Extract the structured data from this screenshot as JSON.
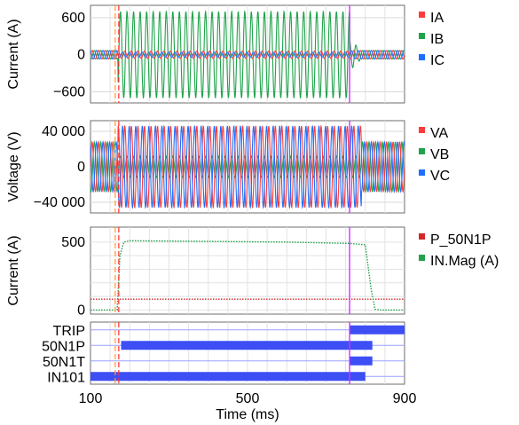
{
  "chart_data": [
    {
      "type": "line",
      "ylabel": "Current (A)",
      "yticks": [
        600,
        0,
        -600
      ],
      "ytick_labels": [
        "600",
        "0",
        "−600"
      ],
      "ylim": [
        -780,
        800
      ],
      "xlim": [
        100,
        900
      ],
      "grid": true,
      "legend_placement": "right",
      "series": [
        {
          "name": "IA",
          "color": "#ff3b3b"
        },
        {
          "name": "IB",
          "color": "#1fa34a"
        },
        {
          "name": "IC",
          "color": "#1f6fff"
        }
      ],
      "pre_fault_amplitude": 70,
      "fault_amplitude": {
        "IA": 60,
        "IB": 700,
        "IC": 40
      },
      "fault_start_ms": 170,
      "fault_end_ms": 760,
      "cycles_per_ms": 0.06
    },
    {
      "type": "line",
      "ylabel": "Voltage (V)",
      "yticks": [
        40000,
        0,
        -40000
      ],
      "ytick_labels": [
        "40 000",
        "0",
        "−40 000"
      ],
      "ylim": [
        -52000,
        52000
      ],
      "xlim": [
        100,
        900
      ],
      "grid": true,
      "legend_placement": "right",
      "series": [
        {
          "name": "VA",
          "color": "#ff3b3b"
        },
        {
          "name": "VB",
          "color": "#1fa34a"
        },
        {
          "name": "VC",
          "color": "#1f6fff"
        }
      ],
      "pre_fault_amplitude": 28000,
      "fault_amplitude": {
        "VA": 46000,
        "VB": 12000,
        "VC": 46000
      },
      "fault_start_ms": 170,
      "fault_end_ms": 790
    },
    {
      "type": "line",
      "ylabel": "Current (A)",
      "yticks": [
        500,
        0
      ],
      "ytick_labels": [
        "500",
        "0"
      ],
      "ylim": [
        -30,
        610
      ],
      "xlim": [
        100,
        900
      ],
      "grid": true,
      "legend_placement": "right",
      "series": [
        {
          "name": "P_50N1P",
          "color": "#d62728",
          "style": "dotted",
          "x": [
            100,
            900
          ],
          "y": [
            80,
            80
          ]
        },
        {
          "name": "IN.Mag (A)",
          "color": "#1fa34a",
          "style": "dotted",
          "x": [
            100,
            168,
            175,
            185,
            200,
            400,
            600,
            760,
            800,
            815,
            825,
            840,
            900
          ],
          "y": [
            0,
            0,
            400,
            500,
            510,
            505,
            500,
            490,
            480,
            150,
            5,
            0,
            0
          ]
        }
      ]
    },
    {
      "type": "bar",
      "subtype": "digital-timeline",
      "xlim": [
        100,
        900
      ],
      "xticks": [
        100,
        500,
        900
      ],
      "xtick_labels": [
        "100",
        "500",
        "900"
      ],
      "xlabel": "Time (ms)",
      "bar_color": "#3d4ef5",
      "channels": [
        {
          "name": "TRIP",
          "on": [
            [
              760,
              900
            ]
          ]
        },
        {
          "name": "50N1P",
          "on": [
            [
              178,
              818
            ]
          ]
        },
        {
          "name": "50N1T",
          "on": [
            [
              760,
              818
            ]
          ]
        },
        {
          "name": "IN101",
          "on": [
            [
              100,
              800
            ]
          ]
        }
      ]
    }
  ],
  "markers": {
    "orange_dashed_ms": 163,
    "red_dashed_ms": 172,
    "magenta_ms": 760,
    "orange_color": "#ff9933",
    "red_color": "#ff2e2e",
    "magenta_color": "#cc33ff"
  }
}
